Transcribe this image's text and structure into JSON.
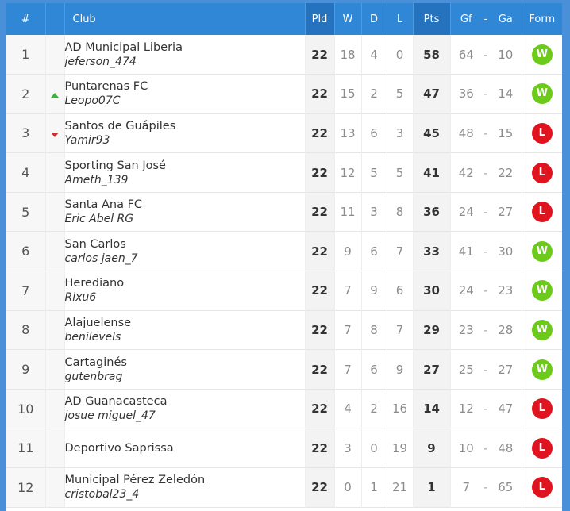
{
  "header": {
    "pos": "#",
    "club": "Club",
    "pld": "Pld",
    "w": "W",
    "d": "D",
    "l": "L",
    "pts": "Pts",
    "gf": "Gf",
    "sep": "-",
    "ga": "Ga",
    "form": "Form"
  },
  "colors": {
    "header_bg": "#2f87d6",
    "win": "#6ccb1a",
    "loss": "#e0141e",
    "up": "#3fb13f",
    "down": "#d22b2b"
  },
  "rows": [
    {
      "pos": "1",
      "move": "",
      "team": "AD Municipal Liberia",
      "user": "jeferson_474",
      "pld": "22",
      "w": "18",
      "d": "4",
      "l": "0",
      "pts": "58",
      "gf": "64",
      "ga": "10",
      "form": "W"
    },
    {
      "pos": "2",
      "move": "up",
      "team": "Puntarenas FC",
      "user": "Leopo07C",
      "pld": "22",
      "w": "15",
      "d": "2",
      "l": "5",
      "pts": "47",
      "gf": "36",
      "ga": "14",
      "form": "W"
    },
    {
      "pos": "3",
      "move": "down",
      "team": "Santos de Guápiles",
      "user": "Yamir93",
      "pld": "22",
      "w": "13",
      "d": "6",
      "l": "3",
      "pts": "45",
      "gf": "48",
      "ga": "15",
      "form": "L"
    },
    {
      "pos": "4",
      "move": "",
      "team": "Sporting San José",
      "user": "Ameth_139",
      "pld": "22",
      "w": "12",
      "d": "5",
      "l": "5",
      "pts": "41",
      "gf": "42",
      "ga": "22",
      "form": "L"
    },
    {
      "pos": "5",
      "move": "",
      "team": "Santa Ana FC",
      "user": "Eric Abel RG",
      "pld": "22",
      "w": "11",
      "d": "3",
      "l": "8",
      "pts": "36",
      "gf": "24",
      "ga": "27",
      "form": "L"
    },
    {
      "pos": "6",
      "move": "",
      "team": "San Carlos",
      "user": "carlos jaen_7",
      "pld": "22",
      "w": "9",
      "d": "6",
      "l": "7",
      "pts": "33",
      "gf": "41",
      "ga": "30",
      "form": "W"
    },
    {
      "pos": "7",
      "move": "",
      "team": "Herediano",
      "user": "Rixu6",
      "pld": "22",
      "w": "7",
      "d": "9",
      "l": "6",
      "pts": "30",
      "gf": "24",
      "ga": "23",
      "form": "W"
    },
    {
      "pos": "8",
      "move": "",
      "team": "Alajuelense",
      "user": "benilevels",
      "pld": "22",
      "w": "7",
      "d": "8",
      "l": "7",
      "pts": "29",
      "gf": "23",
      "ga": "28",
      "form": "W"
    },
    {
      "pos": "9",
      "move": "",
      "team": "Cartaginés",
      "user": "gutenbrag",
      "pld": "22",
      "w": "7",
      "d": "6",
      "l": "9",
      "pts": "27",
      "gf": "25",
      "ga": "27",
      "form": "W"
    },
    {
      "pos": "10",
      "move": "",
      "team": "AD Guanacasteca",
      "user": "josue miguel_47",
      "pld": "22",
      "w": "4",
      "d": "2",
      "l": "16",
      "pts": "14",
      "gf": "12",
      "ga": "47",
      "form": "L"
    },
    {
      "pos": "11",
      "move": "",
      "team": "Deportivo Saprissa",
      "user": "",
      "pld": "22",
      "w": "3",
      "d": "0",
      "l": "19",
      "pts": "9",
      "gf": "10",
      "ga": "48",
      "form": "L"
    },
    {
      "pos": "12",
      "move": "",
      "team": "Municipal Pérez Zeledón",
      "user": "cristobal23_4",
      "pld": "22",
      "w": "0",
      "d": "1",
      "l": "21",
      "pts": "1",
      "gf": "7",
      "ga": "65",
      "form": "L"
    }
  ]
}
